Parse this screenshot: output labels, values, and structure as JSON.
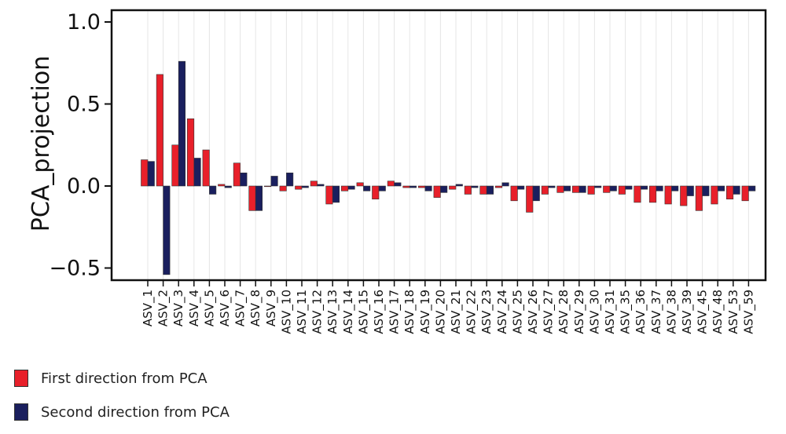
{
  "chart_data": {
    "type": "bar",
    "ylabel": "PCA_projection",
    "xlabel": "",
    "ylim": [
      -0.55,
      1.05
    ],
    "yticks": [
      1.0,
      0.5,
      0.0,
      -0.5
    ],
    "ytick_labels": [
      "1.0",
      "0.5",
      "0.0",
      "−0.5"
    ],
    "grid": "vertical",
    "legend_position": "bottom-left",
    "categories": [
      "ASV_1",
      "ASV_2",
      "ASV_3",
      "ASV_4",
      "ASV_5",
      "ASV_6",
      "ASV_7",
      "ASV_8",
      "ASV_9",
      "ASV_10",
      "ASV_11",
      "ASV_12",
      "ASV_13",
      "ASV_14",
      "ASV_15",
      "ASV_16",
      "ASV_17",
      "ASV_18",
      "ASV_19",
      "ASV_20",
      "ASV_21",
      "ASV_22",
      "ASV_23",
      "ASV_24",
      "ASV_25",
      "ASV_26",
      "ASV_27",
      "ASV_28",
      "ASV_29",
      "ASV_30",
      "ASV_31",
      "ASV_35",
      "ASV_36",
      "ASV_37",
      "ASV_38",
      "ASV_39",
      "ASV_45",
      "ASV_48",
      "ASV_53",
      "ASV_59"
    ],
    "series": [
      {
        "name": "First direction from PCA",
        "color": "#e8202a",
        "values": [
          0.16,
          0.68,
          0.25,
          0.41,
          0.22,
          0.01,
          0.14,
          -0.15,
          0.0,
          -0.03,
          -0.02,
          0.03,
          -0.11,
          -0.03,
          0.02,
          -0.08,
          0.03,
          -0.01,
          -0.01,
          -0.07,
          -0.02,
          -0.05,
          -0.05,
          -0.01,
          -0.09,
          -0.16,
          -0.05,
          -0.04,
          -0.04,
          -0.05,
          -0.04,
          -0.05,
          -0.1,
          -0.1,
          -0.11,
          -0.12,
          -0.15,
          -0.11,
          -0.08,
          -0.09
        ]
      },
      {
        "name": "Second direction from PCA",
        "color": "#1a1f5e",
        "values": [
          0.15,
          -0.54,
          0.76,
          0.17,
          -0.05,
          -0.01,
          0.08,
          -0.15,
          0.06,
          0.08,
          -0.01,
          0.01,
          -0.1,
          -0.02,
          -0.03,
          -0.03,
          0.02,
          -0.01,
          -0.03,
          -0.04,
          0.01,
          -0.01,
          -0.05,
          0.02,
          -0.02,
          -0.09,
          -0.01,
          -0.03,
          -0.04,
          -0.01,
          -0.03,
          -0.02,
          -0.02,
          -0.03,
          -0.03,
          -0.06,
          -0.06,
          -0.03,
          -0.05,
          -0.03
        ]
      }
    ]
  }
}
